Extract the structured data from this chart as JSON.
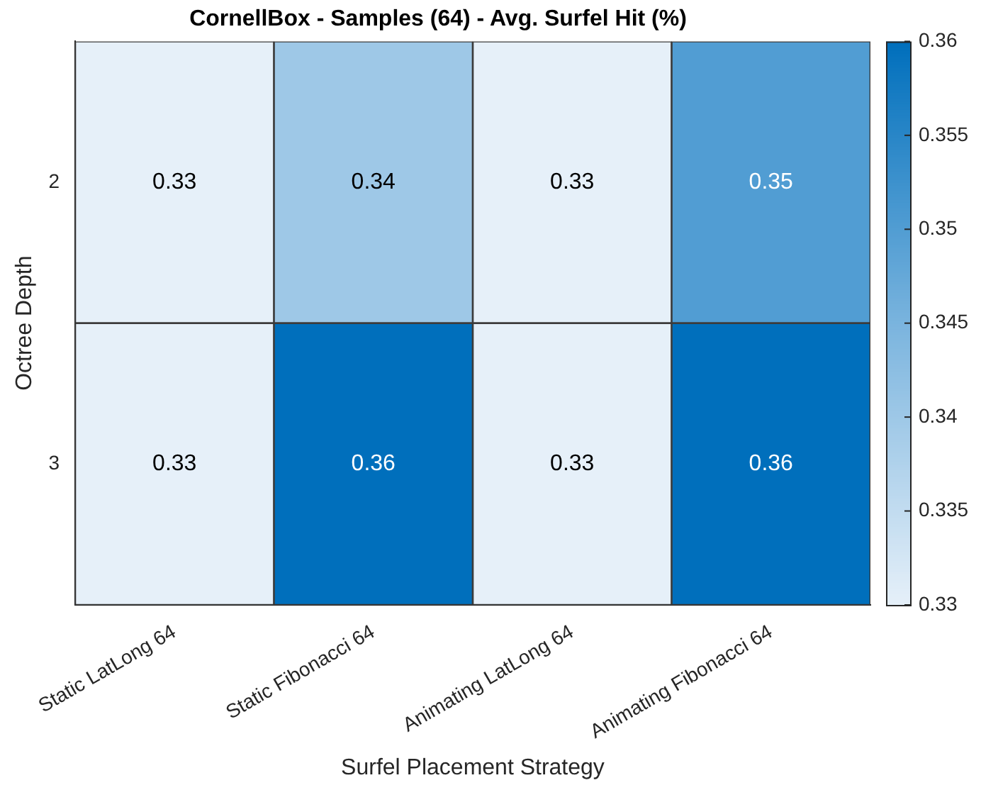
{
  "chart_data": {
    "type": "heatmap",
    "title": "CornellBox - Samples (64) - Avg. Surfel Hit (%)",
    "xlabel": "Surfel Placement Strategy",
    "ylabel": "Octree Depth",
    "categories": [
      "Static LatLong 64",
      "Static Fibonacci 64",
      "Animating LatLong 64",
      "Animating Fibonacci 64"
    ],
    "y_categories": [
      "2",
      "3"
    ],
    "cells": [
      [
        0.33,
        0.34,
        0.33,
        0.35
      ],
      [
        0.33,
        0.36,
        0.33,
        0.36
      ]
    ],
    "data_labels": true,
    "clim": [
      0.33,
      0.36
    ],
    "cticks": [
      0.33,
      0.335,
      0.34,
      0.345,
      0.35,
      0.355,
      0.36
    ]
  }
}
